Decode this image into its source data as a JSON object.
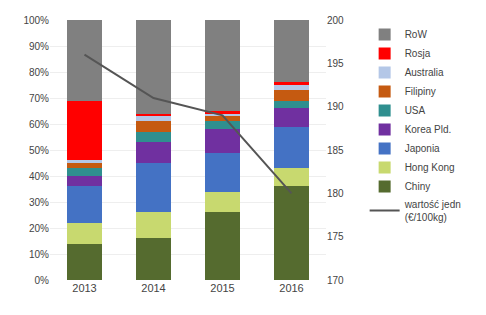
{
  "chart_data": {
    "type": "bar",
    "stacked": true,
    "categories": [
      "2013",
      "2014",
      "2015",
      "2016"
    ],
    "series": [
      {
        "name": "Chiny",
        "color": "#556b2f",
        "values": [
          14,
          16,
          26,
          36
        ]
      },
      {
        "name": "Hong Kong",
        "color": "#c8d96f",
        "values": [
          8,
          10,
          8,
          7
        ]
      },
      {
        "name": "Japonia",
        "color": "#4472c4",
        "values": [
          14,
          19,
          15,
          16
        ]
      },
      {
        "name": "Korea Pld.",
        "color": "#7030a0",
        "values": [
          4,
          8,
          9,
          7
        ]
      },
      {
        "name": "USA",
        "color": "#2f8f8f",
        "values": [
          3,
          4,
          3,
          3
        ]
      },
      {
        "name": "Filipiny",
        "color": "#c55a11",
        "values": [
          2,
          4,
          2,
          4
        ]
      },
      {
        "name": "Australia",
        "color": "#b4c7e7",
        "values": [
          1,
          2,
          1,
          2
        ]
      },
      {
        "name": "Rosja",
        "color": "#ff0000",
        "values": [
          23,
          1,
          1,
          1
        ]
      },
      {
        "name": "RoW",
        "color": "#808080",
        "values": [
          31,
          36,
          35,
          24
        ]
      },
      {
        "name": "wartość jedn\n(€/100kg)",
        "type": "line",
        "axis": "y2",
        "color": "#555555",
        "values": [
          196,
          191,
          189,
          180
        ]
      }
    ],
    "ylim": [
      0,
      100
    ],
    "yticks": [
      {
        "value": 0,
        "label": "0%"
      },
      {
        "value": 10,
        "label": "10%"
      },
      {
        "value": 20,
        "label": "20%"
      },
      {
        "value": 30,
        "label": "30%"
      },
      {
        "value": 40,
        "label": "40%"
      },
      {
        "value": 50,
        "label": "50%"
      },
      {
        "value": 60,
        "label": "60%"
      },
      {
        "value": 70,
        "label": "70%"
      },
      {
        "value": 80,
        "label": "80%"
      },
      {
        "value": 90,
        "label": "90%"
      },
      {
        "value": 100,
        "label": "100%"
      }
    ],
    "y2lim": [
      170,
      200
    ],
    "y2ticks": [
      170,
      175,
      180,
      185,
      190,
      195,
      200
    ],
    "grid": true,
    "legend": "right"
  }
}
